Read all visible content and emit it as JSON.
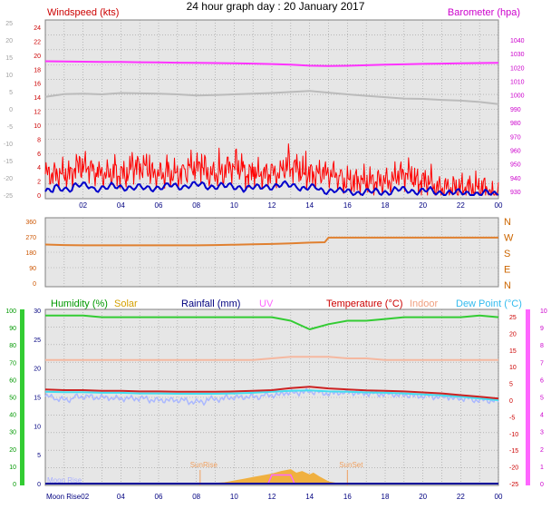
{
  "title": "24 hour graph day : 20 January 2017",
  "colors": {
    "wind_speed": "#ff0000",
    "wind_avg": "#0000cc",
    "barometer": "#ff33ff",
    "barometer_trace": "#bbbbbb",
    "wind_dir": "#e08030",
    "humidity": "#33cc33",
    "solar": "#f0b040",
    "rainfall": "#000099",
    "uv": "#ff66ff",
    "temperature": "#cc2222",
    "indoor": "#f5b8a0",
    "dew_point": "#44ddee",
    "feels_like": "#aab8ff",
    "grid": "#9a9a9a",
    "plot_bg": "#e6e6e6"
  },
  "x_ticks": [
    "02",
    "04",
    "06",
    "08",
    "10",
    "12",
    "14",
    "16",
    "18",
    "20",
    "22",
    "00"
  ],
  "chart_data": [
    {
      "type": "line",
      "panel": "wind-barometer",
      "title": "",
      "left_label": "Windspeed (kts)",
      "right_label": "Barometer (hpa)",
      "left_outer_ticks": [
        "25",
        "20",
        "15",
        "10",
        "5",
        "0",
        "-5",
        "-10",
        "-15",
        "-20",
        "-25"
      ],
      "left_ticks": [
        "24",
        "22",
        "20",
        "18",
        "16",
        "14",
        "12",
        "10",
        "8",
        "6",
        "4",
        "2",
        "0"
      ],
      "right_ticks": [
        "1040",
        "1030",
        "1020",
        "1010",
        "1000",
        "990",
        "980",
        "970",
        "960",
        "950",
        "940",
        "930"
      ],
      "x": [
        0,
        1,
        2,
        3,
        4,
        5,
        6,
        7,
        8,
        9,
        10,
        11,
        12,
        13,
        14,
        15,
        16,
        17,
        18,
        19,
        20,
        21,
        22,
        23,
        24
      ],
      "series": [
        {
          "key": "barometer",
          "values": [
            1024.5,
            1024.3,
            1024.2,
            1024.0,
            1024.0,
            1023.8,
            1023.7,
            1023.5,
            1023.4,
            1023.2,
            1023.0,
            1022.8,
            1022.5,
            1022.0,
            1021.3,
            1021.0,
            1021.2,
            1021.6,
            1022.0,
            1022.3,
            1022.6,
            1022.8,
            1023.0,
            1023.2,
            1023.4
          ]
        },
        {
          "key": "barometer_trace",
          "values": [
            3.5,
            4.3,
            4.4,
            4.2,
            4.6,
            4.5,
            4.4,
            4.2,
            3.9,
            4.0,
            4.2,
            4.4,
            4.6,
            4.9,
            5.2,
            4.7,
            4.2,
            3.8,
            3.4,
            3.0,
            2.9,
            2.6,
            2.4,
            2.0,
            1.4
          ]
        },
        {
          "key": "wind_speed",
          "values": [
            3,
            3,
            4,
            3,
            3,
            4,
            3,
            3,
            4,
            3,
            4,
            3,
            3,
            4,
            3,
            3,
            2,
            2,
            2,
            3,
            2,
            1,
            1,
            1,
            0
          ]
        },
        {
          "key": "wind_avg",
          "values": [
            0.5,
            1.0,
            1.3,
            1.0,
            1.2,
            1.0,
            1.1,
            1.3,
            1.4,
            1.3,
            1.2,
            1.0,
            1.3,
            1.4,
            1.0,
            0.7,
            0.5,
            0.4,
            0.5,
            0.7,
            0.6,
            0.4,
            0.3,
            0.2,
            0.2
          ]
        }
      ]
    },
    {
      "type": "line",
      "panel": "wind-direction",
      "left_ticks": [
        "360",
        "270",
        "180",
        "90",
        "0"
      ],
      "right_ticks": [
        "N",
        "W",
        "S",
        "E",
        "N"
      ],
      "x": [
        0,
        1,
        2,
        3,
        4,
        5,
        6,
        7,
        8,
        9,
        10,
        11,
        12,
        13,
        14,
        14.8,
        15,
        16,
        17,
        18,
        19,
        20,
        21,
        22,
        23,
        24
      ],
      "series": [
        {
          "key": "wind_dir",
          "values": [
            225,
            222,
            220,
            220,
            220,
            220,
            220,
            220,
            220,
            222,
            224,
            226,
            228,
            232,
            236,
            238,
            265,
            265,
            265,
            265,
            265,
            265,
            265,
            265,
            265,
            265
          ]
        }
      ]
    },
    {
      "type": "line",
      "panel": "weather",
      "legend": [
        "Humidity (%)",
        "Solar",
        "Rainfall (mm)",
        "UV",
        "Temperature (°C)",
        "Indoor",
        "Dew Point (°C)"
      ],
      "humidity_ticks": [
        "100",
        "90",
        "80",
        "70",
        "60",
        "50",
        "40",
        "30",
        "20",
        "10",
        "0"
      ],
      "rain_ticks": [
        "30",
        "25",
        "20",
        "15",
        "10",
        "5",
        "0"
      ],
      "temp_ticks": [
        "25",
        "20",
        "15",
        "10",
        "5",
        "0",
        "-5",
        "-10",
        "-15",
        "-20",
        "-25"
      ],
      "uv_ticks": [
        "10",
        "9",
        "8",
        "7",
        "6",
        "5",
        "4",
        "3",
        "2",
        "1",
        "0"
      ],
      "annotations": [
        {
          "text": "SunRise",
          "x": 8.2
        },
        {
          "text": "SunSet",
          "x": 16.0
        },
        {
          "text": "Moon Rise",
          "x": 0.1
        }
      ],
      "x_label": "Moon Rise02",
      "x": [
        0,
        1,
        2,
        3,
        4,
        5,
        6,
        7,
        8,
        9,
        10,
        11,
        12,
        13,
        14,
        15,
        16,
        17,
        18,
        19,
        20,
        21,
        22,
        23,
        24
      ],
      "series": [
        {
          "key": "humidity",
          "axis": "humidity",
          "values": [
            97,
            97,
            97,
            96,
            96,
            96,
            96,
            96,
            96,
            96,
            96,
            96,
            96,
            94,
            89,
            92,
            94,
            94,
            95,
            96,
            96,
            96,
            96,
            97,
            96
          ]
        },
        {
          "key": "indoor",
          "axis": "temp",
          "values": [
            12,
            12,
            12,
            12,
            12,
            12,
            12,
            12,
            12,
            12,
            12,
            12,
            12.5,
            13,
            13,
            13,
            12.5,
            12.5,
            12,
            12,
            12,
            12,
            12,
            12,
            12
          ]
        },
        {
          "key": "temperature",
          "axis": "temp",
          "values": [
            3.2,
            3.0,
            3.0,
            2.8,
            2.8,
            2.6,
            2.6,
            2.5,
            2.5,
            2.5,
            2.6,
            2.8,
            3.0,
            3.6,
            4.0,
            3.5,
            3.2,
            2.9,
            2.8,
            2.6,
            2.3,
            2.0,
            1.5,
            1.0,
            0.5
          ]
        },
        {
          "key": "dew_point",
          "axis": "temp",
          "values": [
            2.5,
            2.4,
            2.4,
            2.2,
            2.2,
            2.0,
            2.0,
            1.9,
            1.9,
            1.9,
            2.0,
            2.2,
            2.5,
            2.8,
            2.9,
            2.6,
            2.5,
            2.3,
            2.2,
            2.0,
            1.7,
            1.4,
            1.0,
            0.5,
            0.0
          ]
        },
        {
          "key": "feels_like",
          "axis": "temp",
          "values": [
            1.0,
            0.2,
            1.0,
            0.8,
            0.5,
            0.5,
            0.0,
            0.0,
            -0.5,
            0.3,
            0.8,
            1.0,
            1.5,
            2.2,
            2.5,
            2.0,
            2.3,
            2.0,
            1.8,
            1.5,
            1.2,
            1.0,
            0.5,
            0.0,
            -0.2
          ]
        },
        {
          "key": "solar",
          "axis": "humidity",
          "x": [
            8.8,
            9.5,
            10,
            10.5,
            11,
            11.5,
            12,
            12.5,
            13,
            13.3,
            13.6,
            14,
            14.2,
            14.5,
            15,
            15.5
          ],
          "values": [
            0,
            0.5,
            1.5,
            2.5,
            3.5,
            4.5,
            5.5,
            7,
            8,
            6,
            7,
            5,
            6,
            4,
            1,
            0
          ]
        },
        {
          "key": "uv",
          "axis": "uv",
          "x": [
            11.8,
            12.0,
            12.8,
            13.0,
            13.2,
            13.5
          ],
          "values": [
            0,
            0.5,
            0.5,
            0.5,
            0,
            0
          ]
        }
      ]
    }
  ]
}
